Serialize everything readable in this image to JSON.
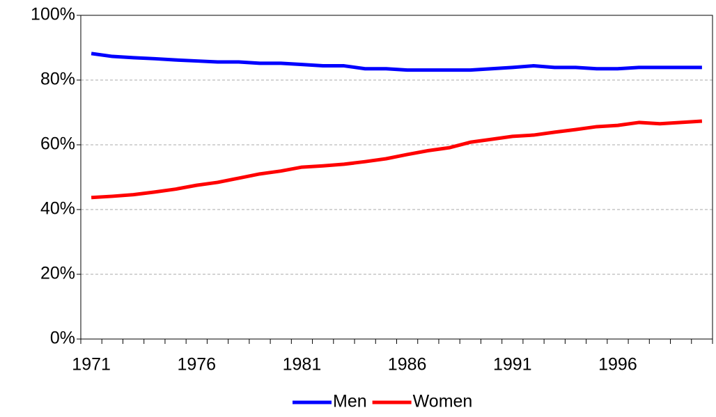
{
  "chart_data": {
    "type": "line",
    "categories": [
      "1971",
      null,
      null,
      null,
      null,
      "1976",
      null,
      null,
      null,
      null,
      "1981",
      null,
      null,
      null,
      null,
      "1986",
      null,
      null,
      null,
      null,
      "1991",
      null,
      null,
      null,
      null,
      "1996",
      null,
      null,
      null,
      null
    ],
    "series": [
      {
        "name": "Men",
        "color": "#0000ff",
        "values": [
          88.2,
          87.3,
          86.9,
          86.6,
          86.2,
          85.9,
          85.6,
          85.6,
          85.2,
          85.2,
          84.8,
          84.4,
          84.4,
          83.5,
          83.5,
          83.1,
          83.1,
          83.1,
          83.1,
          83.5,
          83.9,
          84.4,
          83.9,
          83.9,
          83.5,
          83.5,
          83.9,
          83.9,
          83.9,
          83.9
        ]
      },
      {
        "name": "Women",
        "color": "#ff0000",
        "values": [
          43.7,
          44.1,
          44.6,
          45.4,
          46.3,
          47.5,
          48.4,
          49.7,
          51.0,
          51.9,
          53.1,
          53.5,
          54.0,
          54.8,
          55.7,
          57.0,
          58.2,
          59.1,
          60.8,
          61.7,
          62.6,
          63.0,
          63.9,
          64.7,
          65.6,
          66.0,
          66.9,
          66.5,
          66.9,
          67.3
        ]
      }
    ],
    "ylim": [
      0,
      100
    ],
    "yticks": [
      {
        "value": 0,
        "label": "0%"
      },
      {
        "value": 20,
        "label": "20%"
      },
      {
        "value": 40,
        "label": "40%"
      },
      {
        "value": 60,
        "label": "60%"
      },
      {
        "value": 80,
        "label": "80%"
      },
      {
        "value": 100,
        "label": "100%"
      }
    ],
    "grid": true,
    "legend": "bottom"
  }
}
